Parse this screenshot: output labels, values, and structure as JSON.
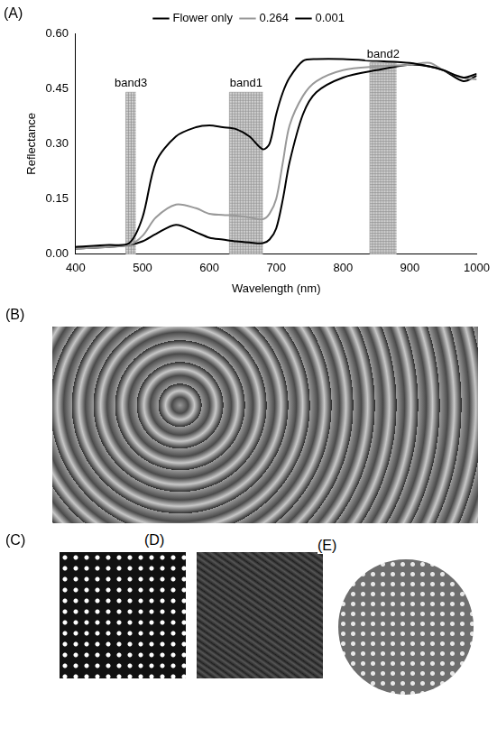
{
  "chart_data": {
    "type": "line",
    "panel_label": "(A)",
    "x_label": "Wavelength (nm)",
    "y_label": "Reflectance",
    "x": [
      400,
      450,
      480,
      500,
      520,
      550,
      580,
      600,
      620,
      640,
      660,
      680,
      690,
      700,
      710,
      720,
      740,
      760,
      800,
      850,
      900,
      930,
      950,
      980,
      1000
    ],
    "series": [
      {
        "name": "Flower only",
        "color": "#000000",
        "line_style": "solid",
        "values": [
          0.02,
          0.025,
          0.03,
          0.1,
          0.25,
          0.32,
          0.345,
          0.35,
          0.345,
          0.34,
          0.32,
          0.285,
          0.3,
          0.38,
          0.44,
          0.48,
          0.525,
          0.53,
          0.53,
          0.525,
          0.52,
          0.51,
          0.5,
          0.48,
          0.49
        ]
      },
      {
        "name": "0.264",
        "color": "#999999",
        "line_style": "solid",
        "values": [
          0.015,
          0.02,
          0.025,
          0.05,
          0.1,
          0.135,
          0.125,
          0.11,
          0.107,
          0.105,
          0.1,
          0.095,
          0.11,
          0.15,
          0.25,
          0.35,
          0.43,
          0.47,
          0.5,
          0.51,
          0.515,
          0.52,
          0.5,
          0.48,
          0.475
        ]
      },
      {
        "name": "0.001",
        "color": "#000000",
        "line_style": "solid",
        "values": [
          0.015,
          0.02,
          0.025,
          0.035,
          0.055,
          0.08,
          0.06,
          0.045,
          0.04,
          0.035,
          0.032,
          0.03,
          0.04,
          0.07,
          0.15,
          0.25,
          0.38,
          0.44,
          0.48,
          0.5,
          0.515,
          0.51,
          0.5,
          0.47,
          0.485
        ]
      }
    ],
    "bands": [
      {
        "label": "band3",
        "xrange": [
          475,
          490
        ],
        "yrange": [
          0,
          0.44
        ]
      },
      {
        "label": "band1",
        "xrange": [
          630,
          680
        ],
        "yrange": [
          0,
          0.44
        ]
      },
      {
        "label": "band2",
        "xrange": [
          840,
          880
        ],
        "yrange": [
          0,
          0.52
        ]
      }
    ],
    "xlim": [
      400,
      1000
    ],
    "xticks": [
      400,
      500,
      600,
      700,
      800,
      900,
      1000
    ],
    "ylim": [
      0,
      0.6
    ],
    "yticks": [
      {
        "value": 0,
        "label": "0.00"
      },
      {
        "value": 0.15,
        "label": "0.15"
      },
      {
        "value": 0.3,
        "label": "0.30"
      },
      {
        "value": 0.45,
        "label": "0.45"
      },
      {
        "value": 0.6,
        "label": "0.60"
      }
    ],
    "grid": false,
    "legend": "top"
  },
  "image_panels": [
    {
      "label": "(B)"
    },
    {
      "label": "(C)"
    },
    {
      "label": "(D)"
    },
    {
      "label": "(E)"
    }
  ]
}
